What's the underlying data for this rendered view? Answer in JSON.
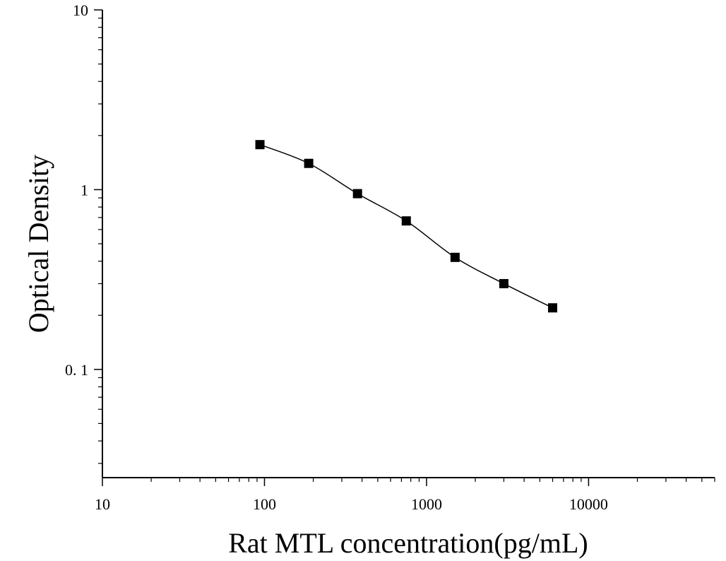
{
  "chart_data": {
    "type": "scatter",
    "title": "",
    "xlabel": "Rat MTL concentration(pg/mL)",
    "ylabel": "Optical Density",
    "x_scale": "log",
    "y_scale": "log",
    "xlim": [
      10,
      60000
    ],
    "ylim": [
      0.025,
      10
    ],
    "x_ticks": [
      {
        "value": 10,
        "label": "10"
      },
      {
        "value": 100,
        "label": "100"
      },
      {
        "value": 1000,
        "label": "1000"
      },
      {
        "value": 10000,
        "label": "10000"
      }
    ],
    "y_ticks": [
      {
        "value": 10,
        "label": "10"
      },
      {
        "value": 1,
        "label": "1"
      },
      {
        "value": 0.1,
        "label": "0. 1"
      }
    ],
    "grid": false,
    "legend": "none",
    "marker": "square",
    "marker_color": "#000000",
    "line_color": "#000000",
    "fit_curve": true,
    "series": [
      {
        "x": [
          93.75,
          187.5,
          375,
          750,
          1500,
          3000,
          6000
        ],
        "y": [
          1.78,
          1.4,
          0.95,
          0.67,
          0.42,
          0.3,
          0.22
        ]
      }
    ]
  }
}
